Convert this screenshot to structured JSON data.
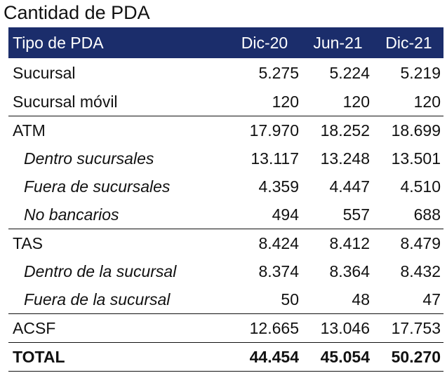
{
  "title": "Cantidad de PDA",
  "header": {
    "label": "Tipo de PDA",
    "periods": [
      "Dic-20",
      "Jun-21",
      "Dic-21"
    ]
  },
  "rows": [
    {
      "label": "Sucursal",
      "values": [
        "5.275",
        "5.224",
        "5.219"
      ],
      "indent": false,
      "group_start": false,
      "total": false
    },
    {
      "label": "Sucursal móvil",
      "values": [
        "120",
        "120",
        "120"
      ],
      "indent": false,
      "group_start": false,
      "total": false
    },
    {
      "label": "ATM",
      "values": [
        "17.970",
        "18.252",
        "18.699"
      ],
      "indent": false,
      "group_start": true,
      "total": false
    },
    {
      "label": "Dentro sucursales",
      "values": [
        "13.117",
        "13.248",
        "13.501"
      ],
      "indent": true,
      "group_start": false,
      "total": false
    },
    {
      "label": "Fuera de sucursales",
      "values": [
        "4.359",
        "4.447",
        "4.510"
      ],
      "indent": true,
      "group_start": false,
      "total": false
    },
    {
      "label": "No bancarios",
      "values": [
        "494",
        "557",
        "688"
      ],
      "indent": true,
      "group_start": false,
      "total": false
    },
    {
      "label": "TAS",
      "values": [
        "8.424",
        "8.412",
        "8.479"
      ],
      "indent": false,
      "group_start": true,
      "total": false
    },
    {
      "label": "Dentro de la sucursal",
      "values": [
        "8.374",
        "8.364",
        "8.432"
      ],
      "indent": true,
      "group_start": false,
      "total": false
    },
    {
      "label": "Fuera de la sucursal",
      "values": [
        "50",
        "48",
        "47"
      ],
      "indent": true,
      "group_start": false,
      "total": false
    },
    {
      "label": "ACSF",
      "values": [
        "12.665",
        "13.046",
        "17.753"
      ],
      "indent": false,
      "group_start": true,
      "total": false
    },
    {
      "label": "TOTAL",
      "values": [
        "44.454",
        "45.054",
        "50.270"
      ],
      "indent": false,
      "group_start": false,
      "total": true
    }
  ]
}
